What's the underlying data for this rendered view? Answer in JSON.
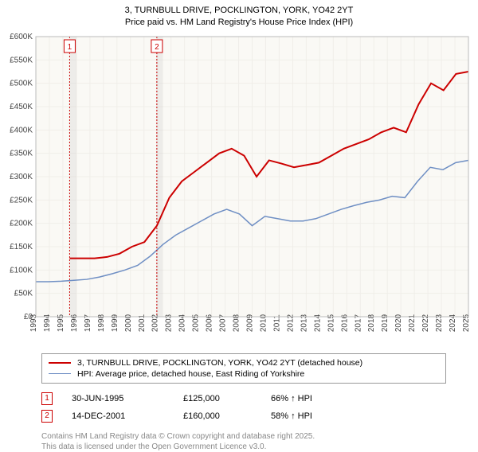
{
  "title_line1": "3, TURNBULL DRIVE, POCKLINGTON, YORK, YO42 2YT",
  "title_line2": "Price paid vs. HM Land Registry's House Price Index (HPI)",
  "chart": {
    "type": "line",
    "plot_bg": "#faf9f5",
    "grid_color": "#f0eee9",
    "x_years": [
      1993,
      1994,
      1995,
      1996,
      1997,
      1998,
      1999,
      2000,
      2001,
      2002,
      2003,
      2004,
      2005,
      2006,
      2007,
      2008,
      2009,
      2010,
      2011,
      2012,
      2013,
      2014,
      2015,
      2016,
      2017,
      2018,
      2019,
      2020,
      2021,
      2022,
      2023,
      2024,
      2025
    ],
    "y_ticks": [
      0,
      50,
      100,
      150,
      200,
      250,
      300,
      350,
      400,
      450,
      500,
      550,
      600
    ],
    "y_tick_labels": [
      "£0",
      "£50K",
      "£100K",
      "£150K",
      "£200K",
      "£250K",
      "£300K",
      "£350K",
      "£400K",
      "£450K",
      "£500K",
      "£550K",
      "£600K"
    ],
    "ylim": [
      0,
      600
    ],
    "series": [
      {
        "name": "property",
        "color": "#cc0000",
        "width": 2,
        "start_year": 1995.5,
        "points": [
          125,
          125,
          125,
          128,
          135,
          150,
          160,
          195,
          255,
          290,
          310,
          330,
          350,
          360,
          345,
          300,
          335,
          328,
          320,
          325,
          330,
          345,
          360,
          370,
          380,
          395,
          405,
          395,
          455,
          500,
          485,
          520,
          525
        ]
      },
      {
        "name": "hpi",
        "color": "#6f8fc4",
        "width": 1.5,
        "start_year": 1993,
        "points": [
          75,
          75,
          76,
          78,
          80,
          85,
          92,
          100,
          110,
          130,
          155,
          175,
          190,
          205,
          220,
          230,
          220,
          195,
          215,
          210,
          205,
          205,
          210,
          220,
          230,
          238,
          245,
          250,
          258,
          255,
          290,
          320,
          315,
          330,
          335
        ]
      }
    ],
    "shaded_regions": [
      {
        "from": 1995.5,
        "to": 1996
      },
      {
        "from": 2001.9,
        "to": 2002.4
      }
    ],
    "event_markers": [
      {
        "num": "1",
        "year": 1995.5
      },
      {
        "num": "2",
        "year": 2001.95
      }
    ]
  },
  "legend": [
    {
      "color": "#cc0000",
      "width": 2,
      "label": "3, TURNBULL DRIVE, POCKLINGTON, YORK, YO42 2YT (detached house)"
    },
    {
      "color": "#6f8fc4",
      "width": 1.5,
      "label": "HPI: Average price, detached house, East Riding of Yorkshire"
    }
  ],
  "marker_rows": [
    {
      "num": "1",
      "date": "30-JUN-1995",
      "price": "£125,000",
      "ratio": "66% ↑ HPI"
    },
    {
      "num": "2",
      "date": "14-DEC-2001",
      "price": "£160,000",
      "ratio": "58% ↑ HPI"
    }
  ],
  "license_line1": "Contains HM Land Registry data © Crown copyright and database right 2025.",
  "license_line2": "This data is licensed under the Open Government Licence v3.0."
}
